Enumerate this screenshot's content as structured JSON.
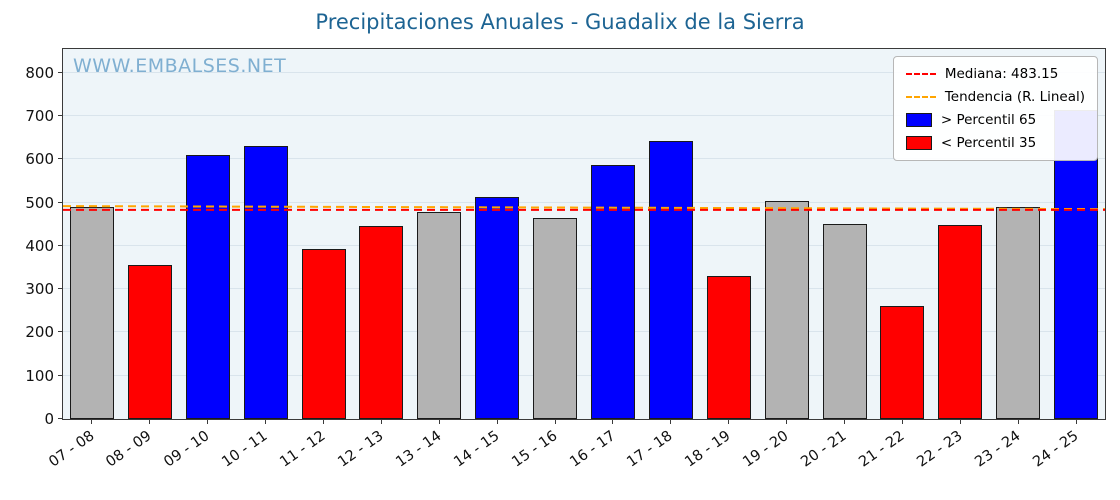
{
  "watermark": "WWW.EMBALSES.NET",
  "legend": {
    "median_label": "Mediana: 483.15",
    "trend_label": "Tendencia (R. Lineal)",
    "high_label": "> Percentil 65",
    "low_label": "< Percentil 35"
  },
  "chart_data": {
    "type": "bar",
    "title": "Precipitaciones Anuales - Guadalix de la Sierra",
    "xlabel": "",
    "ylabel": "",
    "categories": [
      "07 - 08",
      "08 - 09",
      "09 - 10",
      "10 - 11",
      "11 - 12",
      "12 - 13",
      "13 - 14",
      "14 - 15",
      "15 - 16",
      "16 - 17",
      "17 - 18",
      "18 - 19",
      "19 - 20",
      "20 - 21",
      "21 - 22",
      "22 - 23",
      "23 - 24",
      "24 - 25"
    ],
    "values": [
      490,
      355,
      610,
      630,
      392,
      447,
      478,
      512,
      465,
      588,
      643,
      330,
      503,
      450,
      261,
      448,
      490,
      715
    ],
    "bar_classes": [
      "mid",
      "low",
      "high",
      "high",
      "low",
      "low",
      "mid",
      "high",
      "mid",
      "high",
      "high",
      "low",
      "mid",
      "mid",
      "low",
      "low",
      "mid",
      "high"
    ],
    "median": 483.15,
    "trend": {
      "start": 492,
      "end": 485
    },
    "ylim": [
      0,
      855
    ],
    "yticks": [
      0,
      100,
      200,
      300,
      400,
      500,
      600,
      700,
      800
    ],
    "grid": true,
    "legend_position": "upper right",
    "colors": {
      "high": "#0000ff",
      "low": "#ff0000",
      "mid": "#b3b3b3",
      "median_line": "#ff0000",
      "trend_line": "#ffa500",
      "grid": "#d9e4ec",
      "plot_bg": "#eef5f9",
      "title": "#1d6493",
      "watermark": "#7fafd1",
      "bar_edge": "#1a1a1a"
    }
  }
}
